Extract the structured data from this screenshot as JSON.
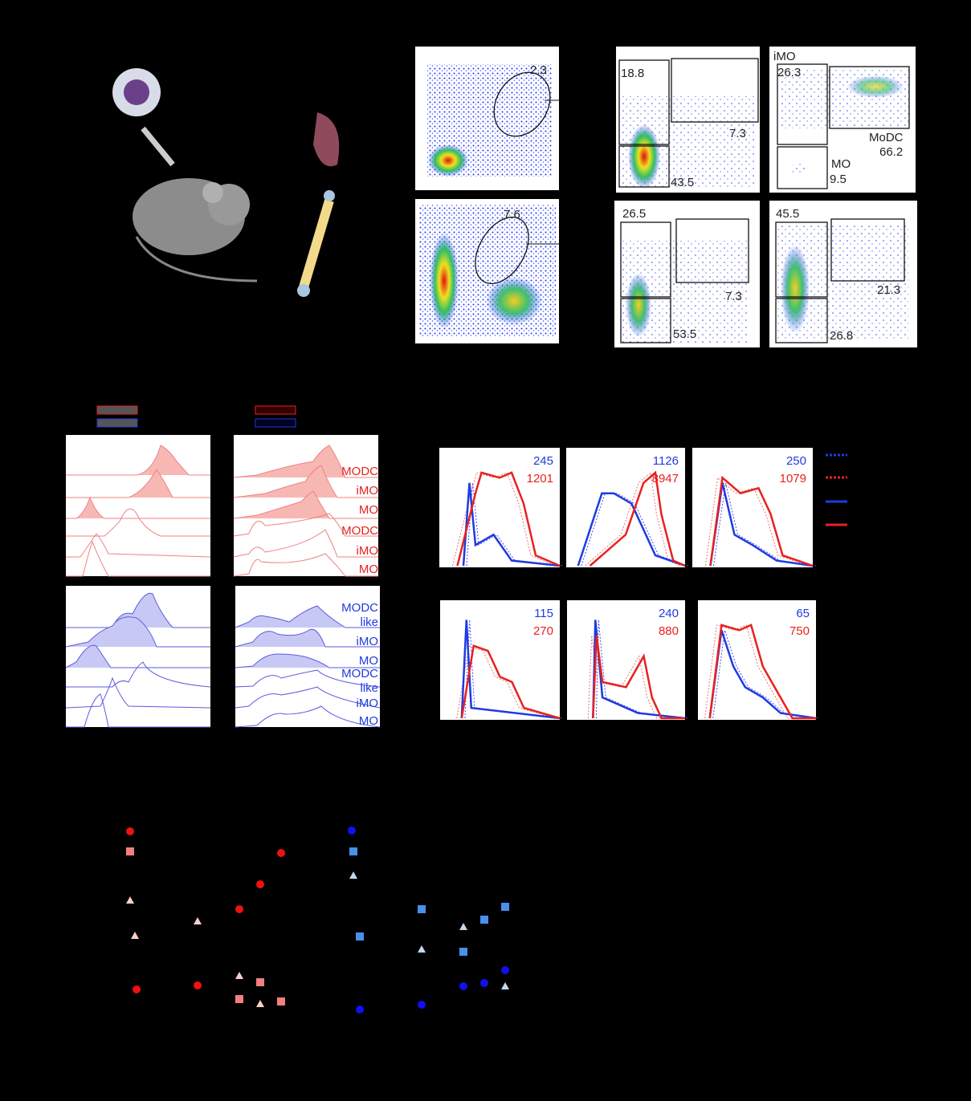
{
  "gating": {
    "top_gate": 2.3,
    "bottom_gate": 7.6
  },
  "quadrant_plots": [
    [
      18.8,
      7.3,
      43.5
    ],
    [
      "iMO",
      26.3,
      "MoDC",
      66.2,
      "MO",
      9.5
    ],
    [
      26.5,
      7.3,
      53.5
    ],
    [
      45.5,
      21.3,
      26.8
    ]
  ],
  "histograms": {
    "red_labels": [
      "MODC",
      "iMO",
      "MO",
      "MODC",
      "iMO",
      "MO"
    ],
    "blue_labels": [
      "MODC",
      "like",
      "iMO",
      "MO",
      "MODC",
      "like",
      "iMO",
      "MO"
    ]
  },
  "mfi": [
    {
      "blue": 245,
      "red": 1201
    },
    {
      "blue": 1126,
      "red": 8947
    },
    {
      "blue": 250,
      "red": 1079
    },
    {
      "blue": 115,
      "red": 270
    },
    {
      "blue": 240,
      "red": 880
    },
    {
      "blue": 65,
      "red": 750
    }
  ]
}
